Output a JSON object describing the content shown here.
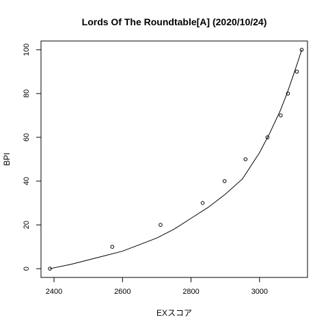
{
  "chart_data": {
    "type": "scatter",
    "title": "Lords Of The Roundtable[A] (2020/10/24)",
    "xlabel": "EXスコア",
    "ylabel": "BPI",
    "xlim": [
      2362,
      3140
    ],
    "ylim": [
      -4,
      104
    ],
    "x_ticks": [
      2400,
      2600,
      2800,
      3000
    ],
    "y_ticks": [
      0,
      20,
      40,
      60,
      80,
      100
    ],
    "points": {
      "x": [
        2388,
        2570,
        2711,
        2834,
        2898,
        2959,
        3023,
        3062,
        3083,
        3109,
        3123
      ],
      "y": [
        0,
        10,
        20,
        30,
        40,
        50,
        60,
        70,
        80,
        90,
        100
      ]
    },
    "fit_curve": {
      "x": [
        2388,
        2450,
        2500,
        2550,
        2600,
        2650,
        2700,
        2750,
        2800,
        2850,
        2900,
        2950,
        3000,
        3030,
        3060,
        3080,
        3100,
        3115,
        3123
      ],
      "y": [
        0,
        2,
        4,
        6,
        8,
        11,
        14,
        18,
        23,
        28,
        34,
        41,
        53,
        62,
        72,
        80,
        89,
        96,
        100
      ]
    },
    "grid": false,
    "legend": "none"
  }
}
